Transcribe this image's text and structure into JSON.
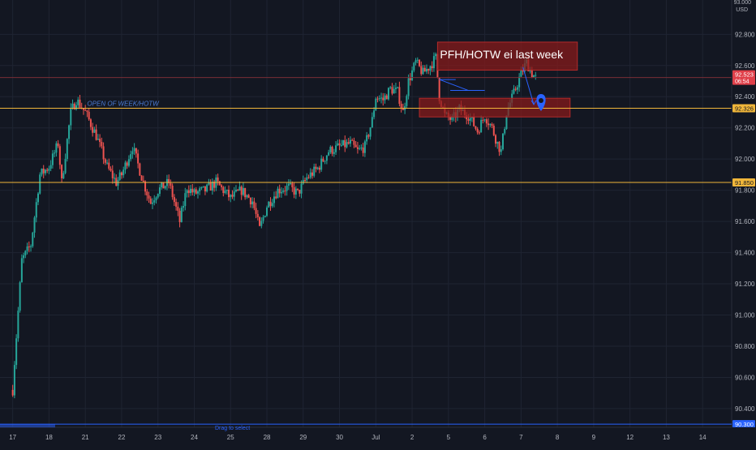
{
  "chart_data": {
    "type": "candlestick",
    "currency_label": "USD",
    "top_label": "93.000",
    "y_ticks": [
      92.8,
      92.6,
      92.4,
      92.2,
      92.0,
      91.8,
      91.6,
      91.4,
      91.2,
      91.0,
      90.8,
      90.6,
      90.4
    ],
    "y_tick_labels": [
      "92.800",
      "92.600",
      "92.400",
      "92.200",
      "92.000",
      "91.800",
      "91.600",
      "91.400",
      "91.200",
      "91.000",
      "90.800",
      "90.600",
      "90.400"
    ],
    "ylim": [
      90.28,
      93.02
    ],
    "x_ticks": [
      {
        "label": "17",
        "day": 0
      },
      {
        "label": "18",
        "day": 1
      },
      {
        "label": "21",
        "day": 2
      },
      {
        "label": "22",
        "day": 3
      },
      {
        "label": "23",
        "day": 4
      },
      {
        "label": "24",
        "day": 5
      },
      {
        "label": "25",
        "day": 6
      },
      {
        "label": "28",
        "day": 7
      },
      {
        "label": "29",
        "day": 8
      },
      {
        "label": "30",
        "day": 9
      },
      {
        "label": "Jul",
        "day": 10
      },
      {
        "label": "2",
        "day": 11
      },
      {
        "label": "5",
        "day": 12
      },
      {
        "label": "6",
        "day": 13
      },
      {
        "label": "7",
        "day": 14
      },
      {
        "label": "8",
        "day": 15
      },
      {
        "label": "9",
        "day": 16
      },
      {
        "label": "12",
        "day": 17
      },
      {
        "label": "13",
        "day": 18
      },
      {
        "label": "14",
        "day": 19
      }
    ],
    "xlim": [
      -0.35,
      19.8
    ],
    "price_path": [
      [
        0.0,
        90.52
      ],
      [
        0.05,
        90.7
      ],
      [
        0.25,
        91.35
      ],
      [
        0.5,
        91.45
      ],
      [
        0.75,
        91.9
      ],
      [
        1.0,
        91.95
      ],
      [
        1.25,
        92.1
      ],
      [
        1.35,
        91.85
      ],
      [
        1.6,
        92.3
      ],
      [
        1.75,
        92.38
      ],
      [
        2.0,
        92.3
      ],
      [
        2.3,
        92.15
      ],
      [
        2.6,
        91.95
      ],
      [
        2.85,
        91.85
      ],
      [
        3.0,
        91.9
      ],
      [
        3.3,
        92.08
      ],
      [
        3.6,
        91.85
      ],
      [
        3.8,
        91.72
      ],
      [
        4.0,
        91.8
      ],
      [
        4.3,
        91.85
      ],
      [
        4.6,
        91.6
      ],
      [
        4.8,
        91.82
      ],
      [
        5.0,
        91.78
      ],
      [
        5.3,
        91.8
      ],
      [
        5.6,
        91.85
      ],
      [
        6.0,
        91.75
      ],
      [
        6.3,
        91.8
      ],
      [
        6.6,
        91.73
      ],
      [
        6.8,
        91.55
      ],
      [
        7.0,
        91.7
      ],
      [
        7.3,
        91.8
      ],
      [
        7.6,
        91.82
      ],
      [
        7.85,
        91.78
      ],
      [
        8.1,
        91.88
      ],
      [
        8.4,
        91.94
      ],
      [
        8.7,
        92.05
      ],
      [
        9.0,
        92.08
      ],
      [
        9.3,
        92.1
      ],
      [
        9.5,
        92.05
      ],
      [
        9.7,
        92.08
      ],
      [
        9.9,
        92.25
      ],
      [
        10.0,
        92.4
      ],
      [
        10.2,
        92.38
      ],
      [
        10.4,
        92.45
      ],
      [
        10.6,
        92.43
      ],
      [
        10.75,
        92.3
      ],
      [
        10.9,
        92.5
      ],
      [
        11.1,
        92.62
      ],
      [
        11.3,
        92.55
      ],
      [
        11.5,
        92.6
      ],
      [
        11.65,
        92.65
      ],
      [
        11.75,
        92.4
      ],
      [
        11.9,
        92.28
      ],
      [
        12.1,
        92.25
      ],
      [
        12.3,
        92.32
      ],
      [
        12.55,
        92.28
      ],
      [
        12.8,
        92.18
      ],
      [
        13.0,
        92.28
      ],
      [
        13.2,
        92.2
      ],
      [
        13.35,
        92.1
      ],
      [
        13.45,
        92.05
      ],
      [
        13.6,
        92.3
      ],
      [
        13.8,
        92.42
      ],
      [
        14.0,
        92.55
      ],
      [
        14.15,
        92.62
      ],
      [
        14.3,
        92.55
      ],
      [
        14.4,
        92.52
      ]
    ],
    "horizontal_lines": [
      {
        "value": 92.326,
        "color": "#f0b63a"
      },
      {
        "value": 91.85,
        "color": "#f0b63a"
      },
      {
        "value": 92.523,
        "color": "#7a2e36"
      }
    ],
    "price_badges": [
      {
        "label": "92.523",
        "sub": "06:54",
        "value": 92.523,
        "bg": "#e0404a",
        "fg": "#ffffff"
      },
      {
        "label": "92.326",
        "value": 92.326,
        "bg": "#f0b63a",
        "fg": "#131722"
      },
      {
        "label": "91.850",
        "value": 91.85,
        "bg": "#f0b63a",
        "fg": "#131722"
      },
      {
        "label": "90.300",
        "value": 90.3,
        "bg": "#2962ff",
        "fg": "#ffffff"
      }
    ],
    "zones": [
      {
        "x0": 11.7,
        "x1": 15.55,
        "y0": 92.57,
        "y1": 92.75,
        "label": "PFH/HOTW ei last week"
      },
      {
        "x0": 11.2,
        "x1": 15.35,
        "y0": 92.27,
        "y1": 92.39,
        "label": ""
      }
    ],
    "annotation_text": "OPEN OF WEEK/HOTW",
    "annotation_anchor": {
      "x": 2.05,
      "y": 92.33
    },
    "drawn_lines": [
      {
        "x0": 11.75,
        "y0": 92.51,
        "x1": 12.2,
        "y1": 92.51
      },
      {
        "x0": 11.75,
        "y0": 92.51,
        "x1": 12.55,
        "y1": 92.44
      },
      {
        "x0": 12.05,
        "y0": 92.44,
        "x1": 13.0,
        "y1": 92.44
      },
      {
        "x0": 14.05,
        "y0": 92.59,
        "x1": 14.35,
        "y1": 92.35
      }
    ],
    "marker": {
      "x": 14.55,
      "y": 92.36,
      "color": "#2962ff"
    },
    "colors": {
      "up": "#26a69a",
      "down": "#ef5350",
      "grid": "#1f2432",
      "axis_text": "#b2b5be",
      "zone": "#8b1a1a"
    },
    "footer_label": "Drag to select"
  }
}
